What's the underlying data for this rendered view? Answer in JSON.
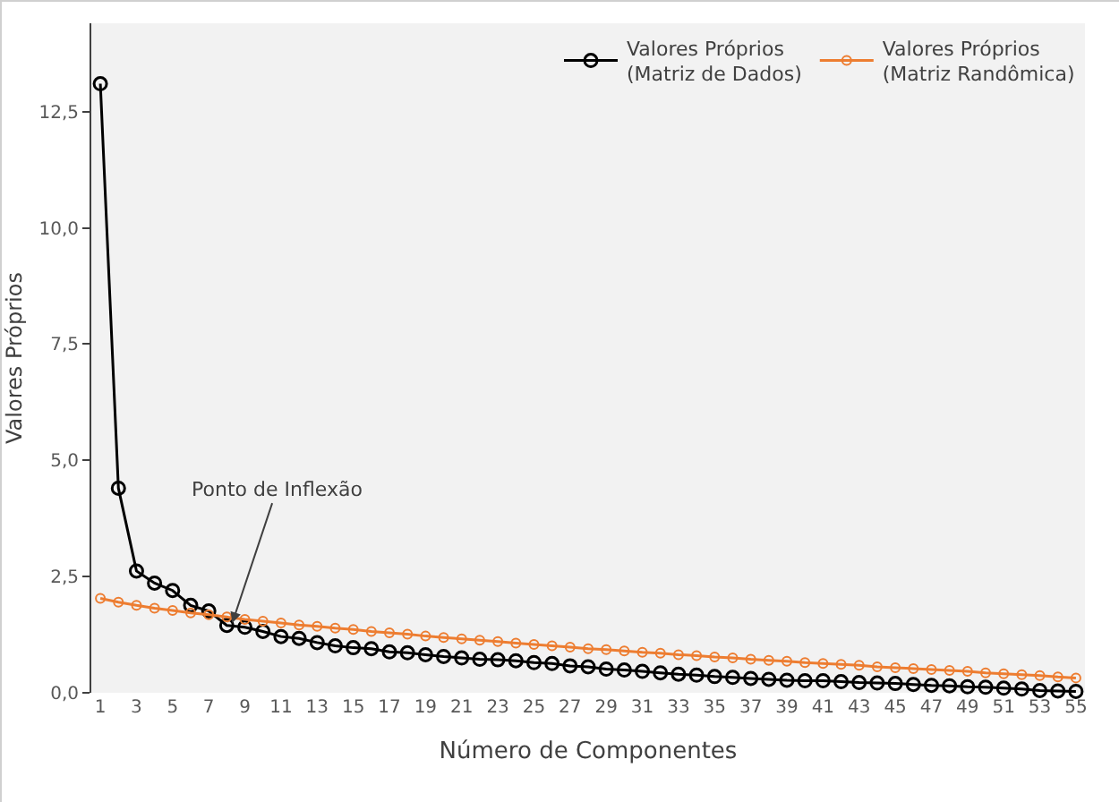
{
  "chart_data": {
    "type": "line",
    "xlabel": "Número de Componentes",
    "ylabel": "Valores Próprios",
    "x": [
      1,
      2,
      3,
      4,
      5,
      6,
      7,
      8,
      9,
      10,
      11,
      12,
      13,
      14,
      15,
      16,
      17,
      18,
      19,
      20,
      21,
      22,
      23,
      24,
      25,
      26,
      27,
      28,
      29,
      30,
      31,
      32,
      33,
      34,
      35,
      36,
      37,
      38,
      39,
      40,
      41,
      42,
      43,
      44,
      45,
      46,
      47,
      48,
      49,
      50,
      51,
      52,
      53,
      54,
      55
    ],
    "series": [
      {
        "name": "Valores Próprios\n(Matriz de Dados)",
        "color": "#000000",
        "values": [
          13.1,
          4.4,
          2.62,
          2.36,
          2.2,
          1.88,
          1.76,
          1.45,
          1.41,
          1.32,
          1.21,
          1.17,
          1.08,
          1.01,
          0.97,
          0.95,
          0.88,
          0.86,
          0.82,
          0.78,
          0.75,
          0.72,
          0.71,
          0.69,
          0.65,
          0.63,
          0.58,
          0.56,
          0.51,
          0.49,
          0.46,
          0.43,
          0.4,
          0.38,
          0.35,
          0.33,
          0.31,
          0.29,
          0.27,
          0.26,
          0.26,
          0.24,
          0.22,
          0.21,
          0.2,
          0.18,
          0.16,
          0.15,
          0.13,
          0.12,
          0.1,
          0.08,
          0.05,
          0.04,
          0.03
        ]
      },
      {
        "name": "Valores Próprios\n(Matriz Randômica)",
        "color": "#ed7d31",
        "values": [
          2.03,
          1.95,
          1.88,
          1.82,
          1.77,
          1.72,
          1.68,
          1.63,
          1.58,
          1.54,
          1.5,
          1.46,
          1.43,
          1.39,
          1.36,
          1.32,
          1.29,
          1.26,
          1.22,
          1.19,
          1.16,
          1.13,
          1.1,
          1.07,
          1.04,
          1.01,
          0.98,
          0.95,
          0.93,
          0.9,
          0.87,
          0.85,
          0.82,
          0.8,
          0.77,
          0.75,
          0.72,
          0.7,
          0.68,
          0.65,
          0.63,
          0.61,
          0.59,
          0.56,
          0.54,
          0.52,
          0.5,
          0.48,
          0.46,
          0.43,
          0.41,
          0.39,
          0.37,
          0.34,
          0.32
        ]
      }
    ],
    "xlim": [
      0.5,
      55.5
    ],
    "xticks": [
      1,
      3,
      5,
      7,
      9,
      11,
      13,
      15,
      17,
      19,
      21,
      23,
      25,
      27,
      29,
      31,
      33,
      35,
      37,
      39,
      41,
      43,
      45,
      47,
      49,
      51,
      53,
      55
    ],
    "ylim": [
      0,
      14.4
    ],
    "yticks": [
      {
        "value": 0,
        "label": "0,0"
      },
      {
        "value": 2.5,
        "label": "2,5"
      },
      {
        "value": 5,
        "label": "5,0"
      },
      {
        "value": 7.5,
        "label": "7,5"
      },
      {
        "value": 10,
        "label": "10,0"
      },
      {
        "value": 12.5,
        "label": "12,5"
      }
    ],
    "annotations": [
      {
        "text": "Ponto de Inflexão",
        "x": 8.3,
        "y": 1.5
      }
    ],
    "grid": false,
    "legend": "top right",
    "marker": "circle",
    "line_style": "solid"
  }
}
